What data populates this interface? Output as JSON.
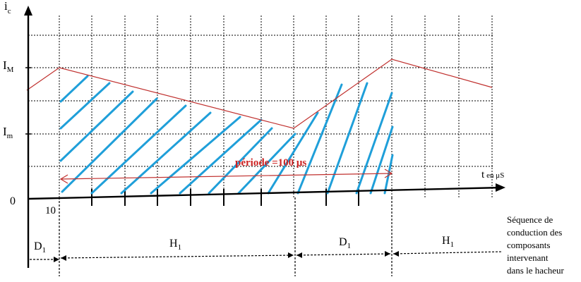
{
  "axes": {
    "y_label_main": "i",
    "y_label_sub": "c",
    "x_label_main": "t",
    "x_label_small": "en μS",
    "origin_label": "0",
    "tick_label_x": "10",
    "level_max_main": "I",
    "level_max_sub": "M",
    "level_min_main": "I",
    "level_min_sub": "m"
  },
  "period": {
    "label": "période =100 μs",
    "color": "#cc2222"
  },
  "sequence": {
    "segments": [
      {
        "main": "D",
        "sub": "1"
      },
      {
        "main": "H",
        "sub": "1"
      },
      {
        "main": "D",
        "sub": "1"
      },
      {
        "main": "H",
        "sub": "1"
      }
    ],
    "caption_lines": [
      "Séquence de",
      "conduction des",
      "composants",
      "intervenant",
      "dans le hacheur"
    ]
  },
  "colors": {
    "waveform": "#c0302e",
    "hatch": "#1f9fd9",
    "grid": "#000000"
  }
}
